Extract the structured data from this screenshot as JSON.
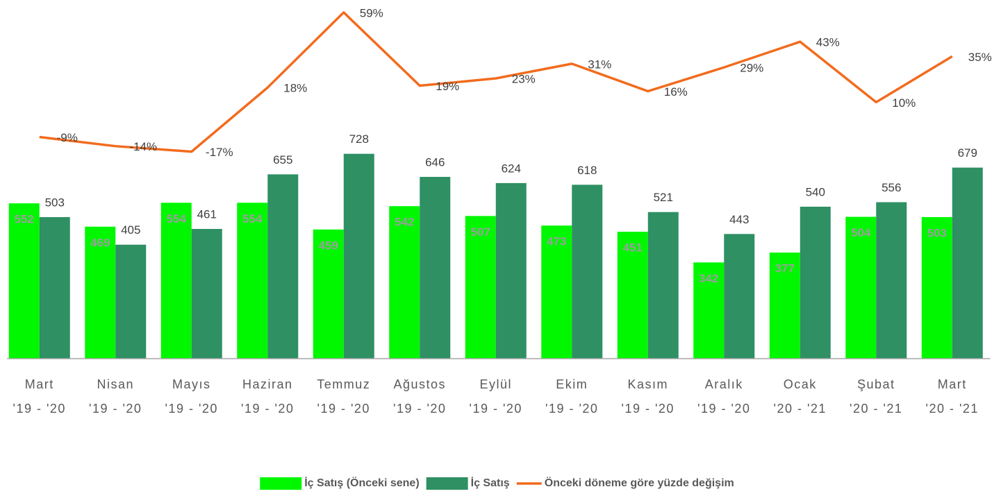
{
  "chart_data": {
    "type": "bar",
    "categories": [
      [
        "Mart",
        "'19 - '20"
      ],
      [
        "Nisan",
        "'19 - '20"
      ],
      [
        "Mayıs",
        "'19 - '20"
      ],
      [
        "Haziran",
        "'19 - '20"
      ],
      [
        "Temmuz",
        "'19 - '20"
      ],
      [
        "Ağustos",
        "'19 - '20"
      ],
      [
        "Eylül",
        "'19 - '20"
      ],
      [
        "Ekim",
        "'19 - '20"
      ],
      [
        "Kasım",
        "'19 - '20"
      ],
      [
        "Aralık",
        "'19 - '20"
      ],
      [
        "Ocak",
        "'20 - '21"
      ],
      [
        "Şubat",
        "'20 - '21"
      ],
      [
        "Mart",
        "'20 - '21"
      ]
    ],
    "ylim": [
      0,
      1250
    ],
    "y2lim": [
      -130,
      62
    ],
    "legend": "bottom",
    "series": [
      {
        "name": "İç Satış (Önceki sene)",
        "type": "bar",
        "color": "#00f700",
        "label_color": "#9e9e9e",
        "values": [
          552,
          469,
          554,
          554,
          459,
          542,
          507,
          473,
          451,
          342,
          377,
          504,
          503
        ]
      },
      {
        "name": "İç Satış",
        "type": "bar",
        "color": "#2e9063",
        "label_color": "#404040",
        "values": [
          503,
          405,
          461,
          655,
          728,
          646,
          624,
          618,
          521,
          443,
          540,
          556,
          679
        ]
      },
      {
        "name": "Önceki döneme göre yüzde değişim",
        "type": "line",
        "axis": "y2",
        "color": "#f26b1d",
        "label_color": "#404040",
        "values": [
          -9,
          -14,
          -17,
          18,
          59,
          19,
          23,
          31,
          16,
          29,
          43,
          10,
          35
        ],
        "value_labels": [
          "-9%",
          "-14%",
          "-17%",
          "18%",
          "59%",
          "19%",
          "23%",
          "31%",
          "16%",
          "29%",
          "43%",
          "10%",
          "35%"
        ]
      }
    ]
  }
}
